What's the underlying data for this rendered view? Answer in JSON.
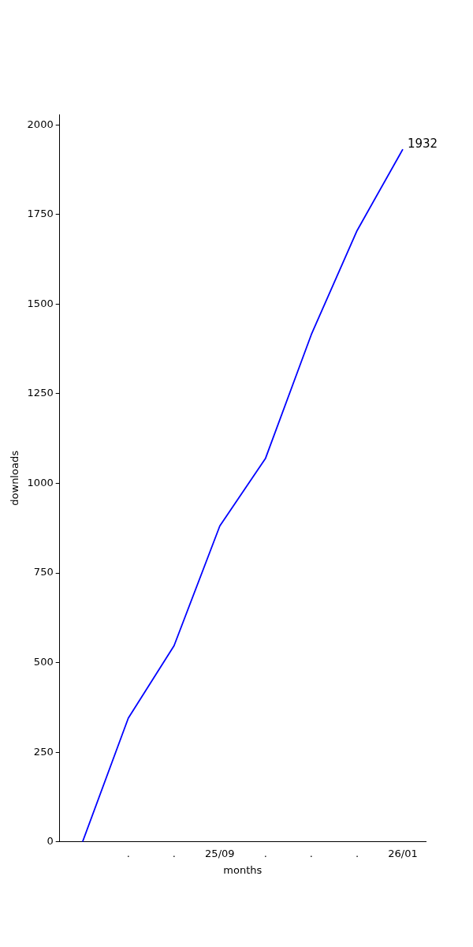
{
  "chart_data": {
    "type": "line",
    "xlabel": "months",
    "ylabel": "downloads",
    "categories": [
      null,
      ".",
      ".",
      "25/09",
      ".",
      ".",
      ".",
      "26/01"
    ],
    "values": [
      0,
      345,
      547,
      881,
      1070,
      1415,
      1705,
      1932
    ],
    "color": "#0000ff",
    "value_labels": [
      null,
      null,
      null,
      null,
      null,
      null,
      null,
      "1932"
    ],
    "ylim": [
      0,
      2029
    ],
    "yticks": [
      0,
      250,
      500,
      750,
      1000,
      1250,
      1500,
      1750,
      2000
    ]
  }
}
